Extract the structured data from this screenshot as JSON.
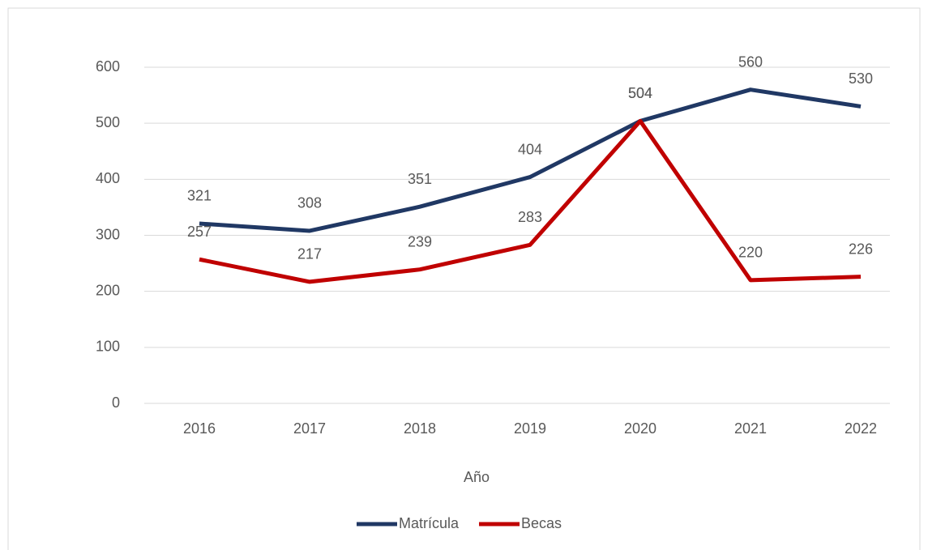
{
  "chart_data": {
    "type": "line",
    "x_label": "Año",
    "categories": [
      "2016",
      "2017",
      "2018",
      "2019",
      "2020",
      "2021",
      "2022"
    ],
    "series": [
      {
        "name": "Matrícula",
        "color": "#203864",
        "values": [
          321,
          308,
          351,
          404,
          504,
          560,
          530
        ]
      },
      {
        "name": "Becas",
        "color": "#c00000",
        "values": [
          257,
          217,
          239,
          283,
          504,
          220,
          226
        ]
      }
    ],
    "ylim": [
      0,
      600
    ],
    "yticks": [
      0,
      100,
      200,
      300,
      400,
      500,
      600
    ],
    "grid": true,
    "legend": "bottom"
  }
}
